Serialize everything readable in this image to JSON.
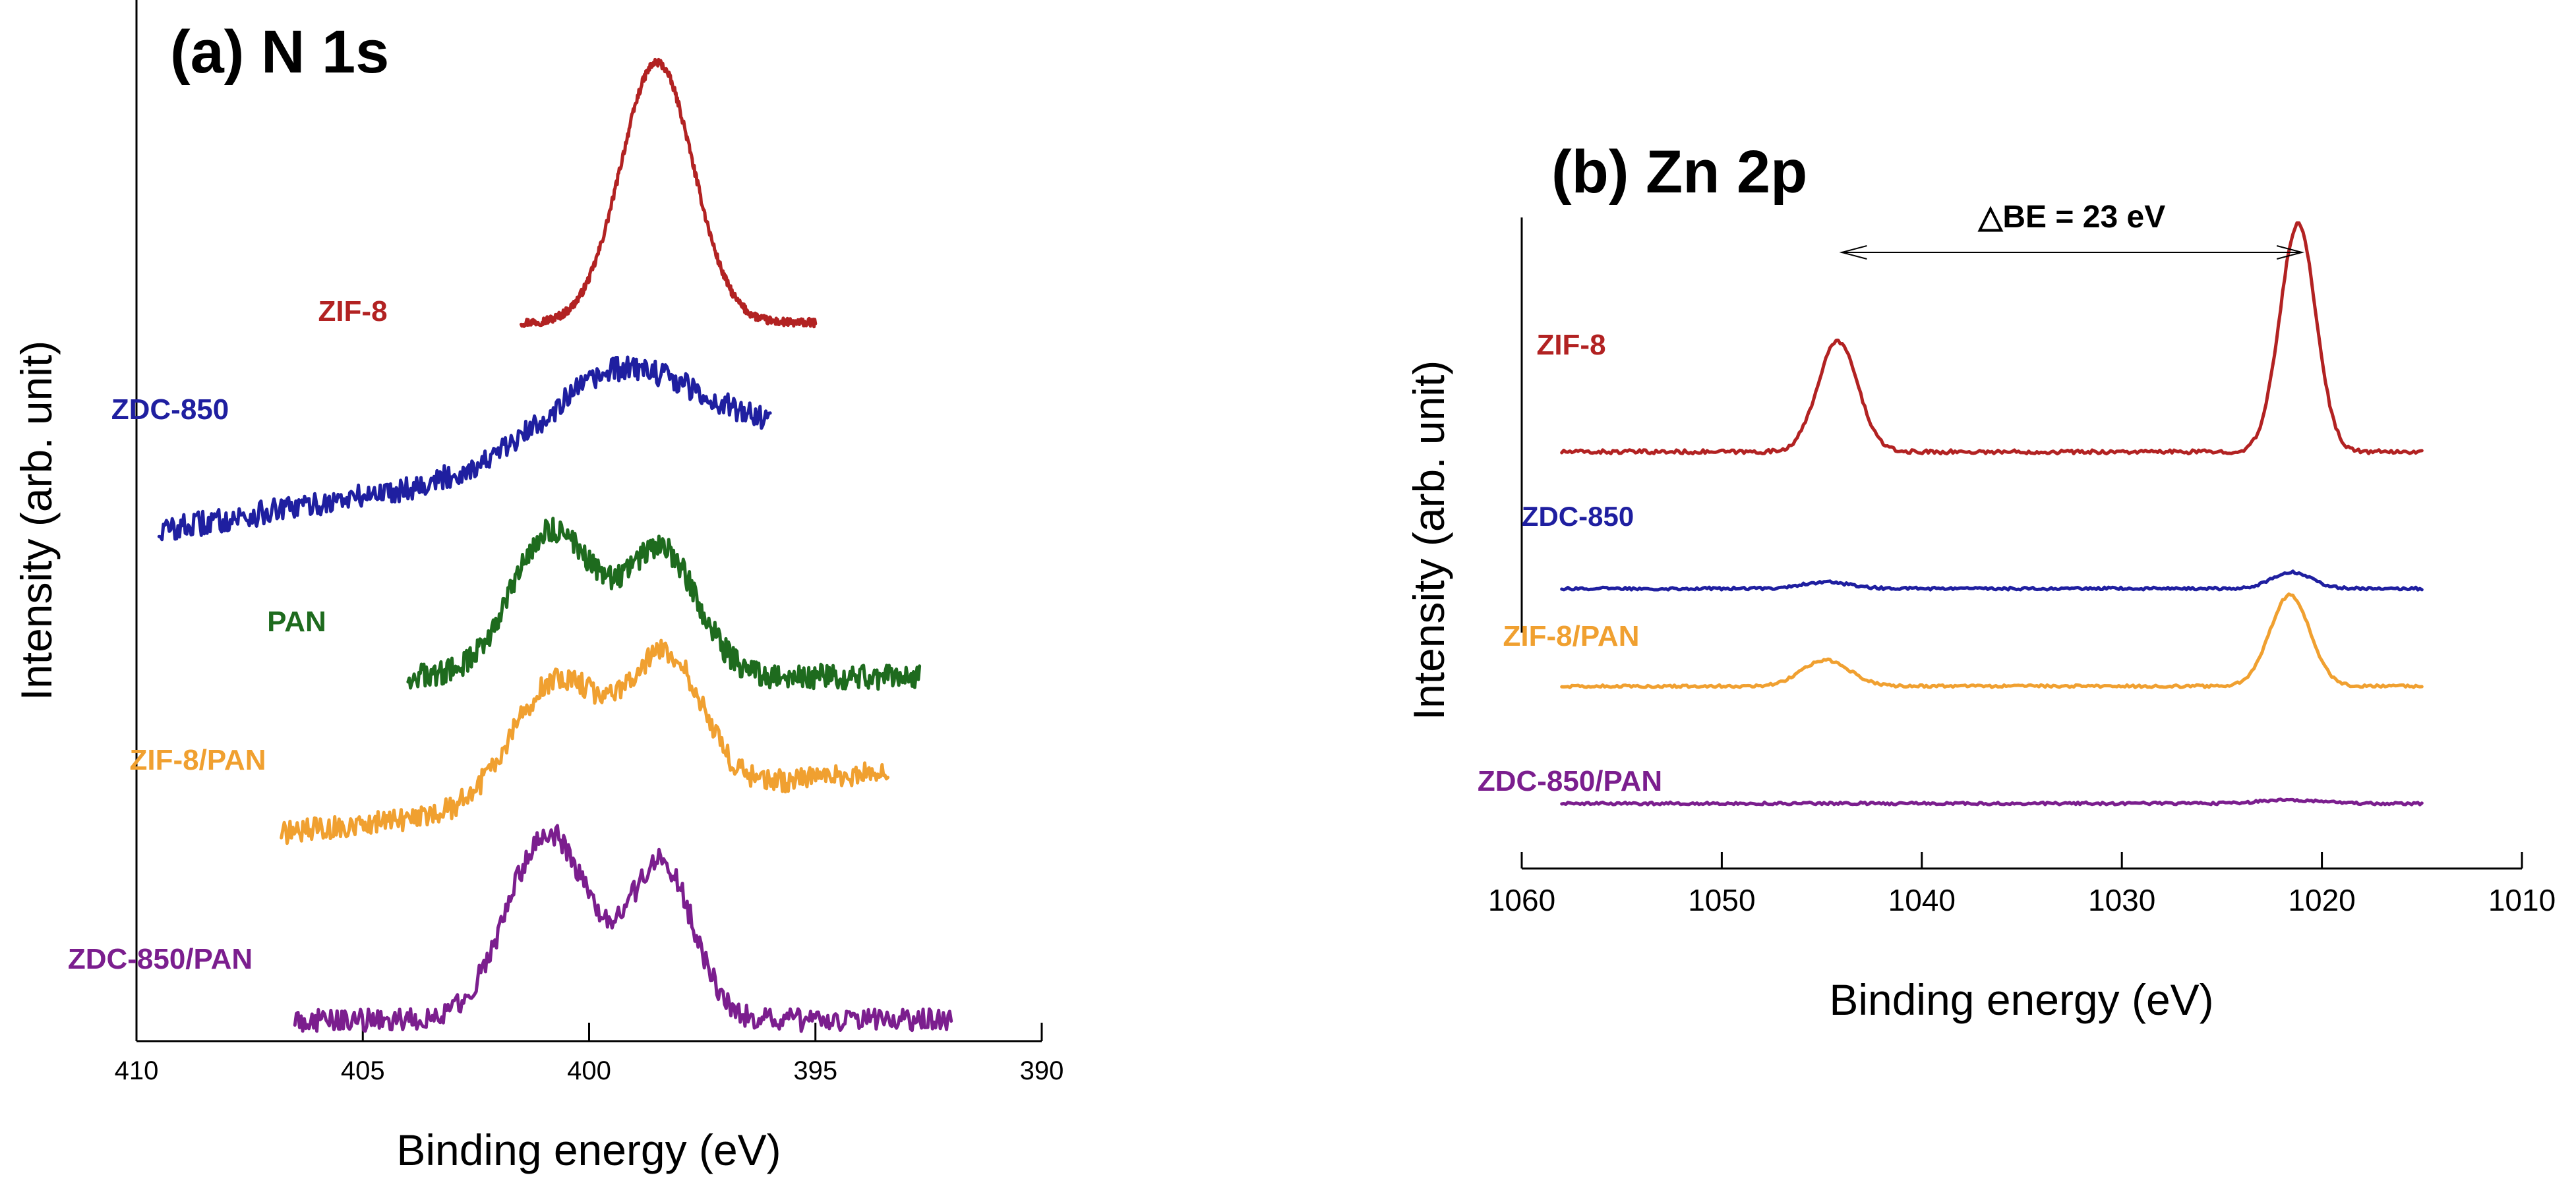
{
  "chart_data": [
    {
      "type": "line",
      "title": "(a) N 1s",
      "xlabel": "Binding energy (eV)",
      "ylabel": "Intensity (arb. unit)",
      "xlim": [
        410,
        390
      ],
      "xticks": [
        410,
        405,
        400,
        395,
        390
      ],
      "y_axis_ticks": false,
      "series": [
        {
          "name": "ZIF-8",
          "color": "#b22222",
          "x_range": [
            401.5,
            395.0
          ],
          "baseline": 0.69,
          "peaks": [
            {
              "center": 398.5,
              "height": 0.25,
              "width": 0.8
            }
          ],
          "noise": 0.004
        },
        {
          "name": "ZDC-850",
          "color": "#1f1fa0",
          "x_range": [
            409.5,
            396.0
          ],
          "baseline": 0.49,
          "slope": 0.0025,
          "peaks": [
            {
              "center": 399.3,
              "height": 0.08,
              "width": 1.6
            }
          ],
          "noise": 0.012
        },
        {
          "name": "PAN",
          "color": "#1e6b1e",
          "x_range": [
            404.0,
            392.7
          ],
          "baseline": 0.35,
          "peaks": [
            {
              "center": 400.8,
              "height": 0.14,
              "width": 0.9
            },
            {
              "center": 398.4,
              "height": 0.12,
              "width": 0.8
            }
          ],
          "noise": 0.012
        },
        {
          "name": "ZIF-8/PAN",
          "color": "#f0a030",
          "x_range": [
            406.8,
            393.4
          ],
          "baseline": 0.2,
          "slope": 0.0015,
          "peaks": [
            {
              "center": 400.7,
              "height": 0.12,
              "width": 1.0
            },
            {
              "center": 398.3,
              "height": 0.13,
              "width": 0.8
            }
          ],
          "noise": 0.011
        },
        {
          "name": "ZDC-850/PAN",
          "color": "#7b1e8e",
          "x_range": [
            406.5,
            392.0
          ],
          "baseline": 0.02,
          "peaks": [
            {
              "center": 400.9,
              "height": 0.18,
              "width": 0.9
            },
            {
              "center": 398.4,
              "height": 0.15,
              "width": 0.7
            }
          ],
          "noise": 0.011
        }
      ]
    },
    {
      "type": "line",
      "title": "(b) Zn 2p",
      "xlabel": "Binding energy (eV)",
      "ylabel": "Intensity (arb. unit)",
      "xlim": [
        1060,
        1010
      ],
      "xticks": [
        1060,
        1050,
        1040,
        1030,
        1020,
        1010
      ],
      "y_axis_ticks": false,
      "annotation": {
        "text": "△BE = 23 eV",
        "from": 1044.0,
        "to": 1021.0
      },
      "series": [
        {
          "name": "ZIF-8",
          "color": "#b22222",
          "x_range": [
            1058.0,
            1015.0
          ],
          "baseline": 0.64,
          "peaks": [
            {
              "center": 1044.2,
              "height": 0.17,
              "width": 1.0
            },
            {
              "center": 1021.2,
              "height": 0.35,
              "width": 0.9
            }
          ],
          "noise": 0.003
        },
        {
          "name": "ZDC-850",
          "color": "#1f1fa0",
          "x_range": [
            1058.0,
            1015.0
          ],
          "baseline": 0.43,
          "peaks": [
            {
              "center": 1044.8,
              "height": 0.01,
              "width": 1.2
            },
            {
              "center": 1021.5,
              "height": 0.025,
              "width": 1.0
            }
          ],
          "noise": 0.002
        },
        {
          "name": "ZIF-8/PAN",
          "color": "#f0a030",
          "x_range": [
            1058.0,
            1015.0
          ],
          "baseline": 0.28,
          "peaks": [
            {
              "center": 1044.8,
              "height": 0.04,
              "width": 1.2
            },
            {
              "center": 1021.6,
              "height": 0.14,
              "width": 1.0
            }
          ],
          "noise": 0.002
        },
        {
          "name": "ZDC-850/PAN",
          "color": "#7b1e8e",
          "x_range": [
            1058.0,
            1015.0
          ],
          "baseline": 0.1,
          "peaks": [
            {
              "center": 1021.5,
              "height": 0.005,
              "width": 1.5
            }
          ],
          "noise": 0.002
        }
      ]
    }
  ]
}
